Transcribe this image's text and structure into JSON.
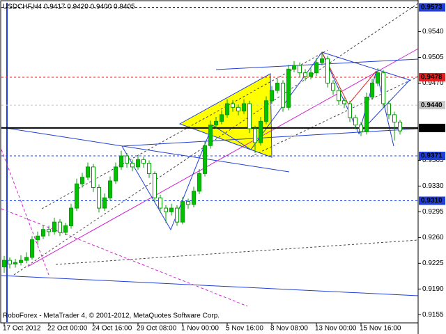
{
  "chart_data": {
    "type": "candlestick",
    "title": "USDCHF,H4  0.9417 0.9420 0.9400 0.9405",
    "footer": "RoboForex - MetaTrader 4, © 2001-2012, MetaQuotes Software Corp.",
    "up_color": "#00c000",
    "down_color": "#ffffff",
    "wick_color": "#00a000",
    "categories": [
      "17 Oct 2012",
      null,
      null,
      null,
      null,
      null,
      null,
      null,
      "22 Oct 00:00",
      null,
      null,
      null,
      null,
      null,
      null,
      null,
      "24 Oct 16:00",
      null,
      null,
      null,
      null,
      null,
      null,
      null,
      "29 Oct 08:00",
      null,
      null,
      null,
      null,
      null,
      null,
      null,
      "1 Nov 00:00",
      null,
      null,
      null,
      null,
      null,
      null,
      null,
      "5 Nov 16:00",
      null,
      null,
      null,
      null,
      null,
      null,
      null,
      "8 Nov 08:00",
      null,
      null,
      null,
      null,
      null,
      null,
      null,
      "13 Nov 00:00",
      null,
      null,
      null,
      null,
      null,
      null,
      null,
      "15 Nov 16:00",
      null,
      null,
      null,
      null,
      null,
      null,
      null
    ],
    "ohlc": [
      [
        0.922,
        0.9235,
        0.9212,
        0.9229
      ],
      [
        0.9229,
        0.9233,
        0.9218,
        0.9224
      ],
      [
        0.9224,
        0.9231,
        0.9219,
        0.9226
      ],
      [
        0.9226,
        0.9236,
        0.9222,
        0.9229
      ],
      [
        0.9229,
        0.924,
        0.9225,
        0.9233
      ],
      [
        0.9233,
        0.9262,
        0.923,
        0.9257
      ],
      [
        0.9257,
        0.9268,
        0.925,
        0.9262
      ],
      [
        0.9262,
        0.9277,
        0.9258,
        0.9271
      ],
      [
        0.9271,
        0.9276,
        0.9262,
        0.9268
      ],
      [
        0.9268,
        0.9287,
        0.9264,
        0.9281
      ],
      [
        0.9281,
        0.9285,
        0.9262,
        0.9267
      ],
      [
        0.9267,
        0.928,
        0.9263,
        0.9276
      ],
      [
        0.9276,
        0.9306,
        0.9272,
        0.93
      ],
      [
        0.93,
        0.934,
        0.9296,
        0.9333
      ],
      [
        0.9333,
        0.9348,
        0.9328,
        0.9342
      ],
      [
        0.9342,
        0.9362,
        0.9338,
        0.9356
      ],
      [
        0.9356,
        0.936,
        0.9322,
        0.9328
      ],
      [
        0.9328,
        0.9332,
        0.9294,
        0.93
      ],
      [
        0.93,
        0.932,
        0.9296,
        0.9314
      ],
      [
        0.9314,
        0.9343,
        0.931,
        0.9337
      ],
      [
        0.9337,
        0.9362,
        0.9333,
        0.9356
      ],
      [
        0.9356,
        0.9378,
        0.9352,
        0.9371
      ],
      [
        0.9371,
        0.9375,
        0.9355,
        0.9361
      ],
      [
        0.9361,
        0.9366,
        0.935,
        0.9356
      ],
      [
        0.9356,
        0.9372,
        0.9352,
        0.9366
      ],
      [
        0.9366,
        0.937,
        0.9355,
        0.9361
      ],
      [
        0.9361,
        0.9365,
        0.9341,
        0.9347
      ],
      [
        0.9347,
        0.935,
        0.9308,
        0.9314
      ],
      [
        0.9314,
        0.9318,
        0.9294,
        0.93
      ],
      [
        0.93,
        0.9304,
        0.928,
        0.9295
      ],
      [
        0.9295,
        0.9306,
        0.929,
        0.93
      ],
      [
        0.93,
        0.9304,
        0.9276,
        0.9281
      ],
      [
        0.9281,
        0.9315,
        0.9278,
        0.9309
      ],
      [
        0.9309,
        0.9313,
        0.9299,
        0.9305
      ],
      [
        0.9305,
        0.9329,
        0.9301,
        0.9323
      ],
      [
        0.9323,
        0.9353,
        0.9319,
        0.9347
      ],
      [
        0.9347,
        0.9391,
        0.9343,
        0.9385
      ],
      [
        0.9385,
        0.9419,
        0.9381,
        0.9413
      ],
      [
        0.9413,
        0.9424,
        0.9408,
        0.9418
      ],
      [
        0.9418,
        0.9433,
        0.9414,
        0.9427
      ],
      [
        0.9427,
        0.9448,
        0.9423,
        0.9442
      ],
      [
        0.9442,
        0.9447,
        0.9431,
        0.9437
      ],
      [
        0.9437,
        0.9441,
        0.9426,
        0.9432
      ],
      [
        0.9432,
        0.9448,
        0.9428,
        0.9442
      ],
      [
        0.9442,
        0.9446,
        0.9402,
        0.9408
      ],
      [
        0.9408,
        0.9412,
        0.9375,
        0.9389
      ],
      [
        0.9389,
        0.9424,
        0.9385,
        0.9418
      ],
      [
        0.9418,
        0.9452,
        0.9414,
        0.9446
      ],
      [
        0.9446,
        0.9466,
        0.9442,
        0.946
      ],
      [
        0.946,
        0.9476,
        0.9456,
        0.947
      ],
      [
        0.947,
        0.9474,
        0.9431,
        0.9437
      ],
      [
        0.9437,
        0.9495,
        0.9433,
        0.9489
      ],
      [
        0.9489,
        0.95,
        0.9485,
        0.9494
      ],
      [
        0.9494,
        0.9498,
        0.9478,
        0.9484
      ],
      [
        0.9484,
        0.9489,
        0.9473,
        0.9479
      ],
      [
        0.9479,
        0.949,
        0.9475,
        0.9484
      ],
      [
        0.9484,
        0.9504,
        0.948,
        0.9498
      ],
      [
        0.9498,
        0.9512,
        0.9494,
        0.9503
      ],
      [
        0.9503,
        0.9507,
        0.9464,
        0.947
      ],
      [
        0.947,
        0.9474,
        0.9454,
        0.946
      ],
      [
        0.946,
        0.9464,
        0.944,
        0.9446
      ],
      [
        0.9446,
        0.945,
        0.9436,
        0.9442
      ],
      [
        0.9442,
        0.9446,
        0.9417,
        0.9423
      ],
      [
        0.9423,
        0.9427,
        0.9407,
        0.9413
      ],
      [
        0.9413,
        0.9417,
        0.9398,
        0.9404
      ],
      [
        0.9404,
        0.9457,
        0.94,
        0.9451
      ],
      [
        0.9451,
        0.9476,
        0.9447,
        0.947
      ],
      [
        0.947,
        0.949,
        0.9466,
        0.9484
      ],
      [
        0.9484,
        0.9488,
        0.9436,
        0.9442
      ],
      [
        0.9442,
        0.9446,
        0.9421,
        0.9427
      ],
      [
        0.9427,
        0.9431,
        0.9392,
        0.9417
      ],
      [
        0.9417,
        0.942,
        0.94,
        0.9405
      ]
    ],
    "ylim": [
      0.9143,
      0.9583
    ],
    "yticks": [
      {
        "value": 0.954,
        "label": "0.9540"
      },
      0.9505,
      {
        "value": 0.947,
        "label": "0.9470"
      },
      0.9365,
      {
        "value": 0.933,
        "label": "0.9330"
      },
      0.9295,
      {
        "value": 0.926,
        "label": "0.9260"
      },
      0.9225,
      {
        "value": 0.919,
        "label": "0.9190"
      },
      0.9155
    ],
    "levels": [
      {
        "value": 0.9573,
        "label": "0.9573",
        "color": "#1f3fd6",
        "style": "dashed-black"
      },
      {
        "value": 0.9478,
        "label": "0.9478",
        "color": "#e02020",
        "style": "dashed"
      },
      {
        "value": 0.944,
        "label": "0.9440",
        "color": "#c8c8c8",
        "style": "dashed"
      },
      {
        "value": 0.9409,
        "label": "0.9409",
        "color": "#000000",
        "style": "solid"
      },
      {
        "value": 0.9371,
        "label": "0.9371",
        "color": "#1f3fd6",
        "style": "dashed"
      },
      {
        "value": 0.931,
        "label": "0.9310",
        "color": "#1f3fd6",
        "style": "dashed"
      }
    ]
  }
}
